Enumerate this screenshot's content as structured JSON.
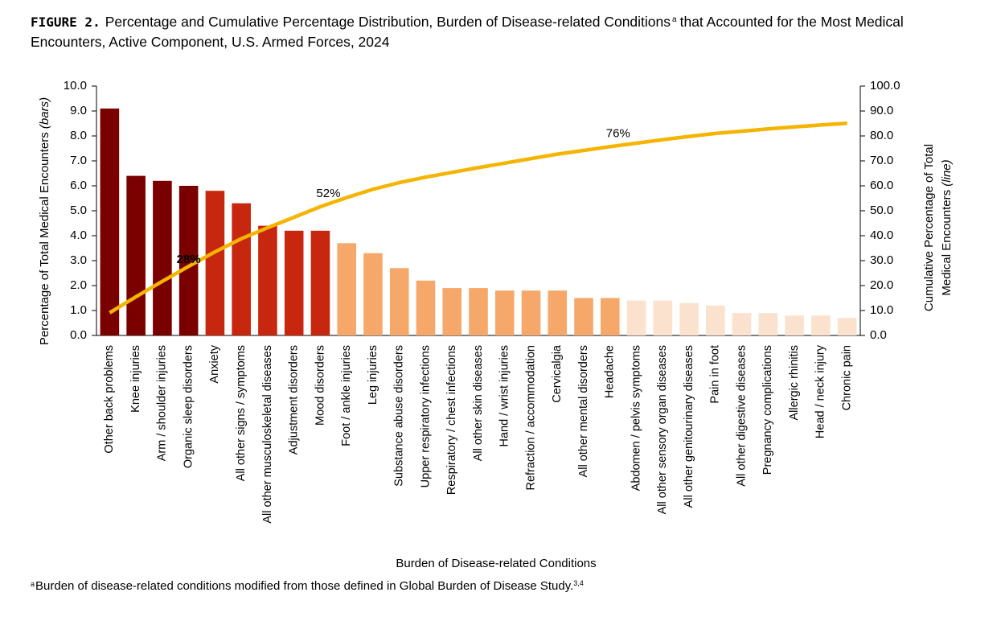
{
  "chart_data": {
    "type": "bar-line",
    "figure_label": "FIGURE 2.",
    "title": "Percentage and Cumulative Percentage Distribution, Burden of Disease-related Conditions",
    "title_superscript": "a",
    "title_rest": "that Accounted for the Most Medical Encounters, Active Component, U.S. Armed Forces, 2024",
    "xlabel": "Burden of Disease-related Conditions",
    "ylabel": "Percentage of Total Medical Encounters",
    "ylabel_note": "(bars)",
    "y2label": "Cumulative Percentage of Total",
    "y2label_line2": "Medical Encounters",
    "y2label_note": "(line)",
    "footnote_marker": "a",
    "footnote": "Burden of disease-related conditions modified from those defined in Global Burden of Disease Study.",
    "footnote_refs": "3,4",
    "categories": [
      "Other back problems",
      "Knee injuries",
      "Arm / shoulder injuries",
      "Organic sleep disorders",
      "Anxiety",
      "All other signs / symptoms",
      "All other musculoskeletal diseases",
      "Adjustment disorders",
      "Mood disorders",
      "Foot / ankle injuries",
      "Leg injuries",
      "Substance abuse disorders",
      "Upper respiratory infections",
      "Respiratory / chest infections",
      "All other skin diseases",
      "Hand / wrist injuries",
      "Refraction / accommodation",
      "Cervicalgia",
      "All other mental disorders",
      "Headache",
      "Abdomen / pelvis symptoms",
      "All other sensory organ diseases",
      "All other genitourinary diseases",
      "Pain in foot",
      "All other digestive diseases",
      "Pregnancy complications",
      "Allergic rhinitis",
      "Head / neck injury",
      "Chronic pain"
    ],
    "series": [
      {
        "type": "bar",
        "values": [
          9.1,
          6.4,
          6.2,
          6.0,
          5.8,
          5.3,
          4.4,
          4.2,
          4.2,
          3.7,
          3.3,
          2.7,
          2.2,
          1.9,
          1.9,
          1.8,
          1.8,
          1.8,
          1.5,
          1.5,
          1.4,
          1.4,
          1.3,
          1.2,
          0.9,
          0.9,
          0.8,
          0.8,
          0.7
        ],
        "colors": [
          "#7a0000",
          "#7a0000",
          "#7a0000",
          "#7a0000",
          "#c7260f",
          "#c7260f",
          "#c7260f",
          "#c7260f",
          "#c7260f",
          "#f5a86a",
          "#f5a86a",
          "#f5a86a",
          "#f5a86a",
          "#f5a86a",
          "#f5a86a",
          "#f5a86a",
          "#f5a86a",
          "#f5a86a",
          "#f5a86a",
          "#f5a86a",
          "#fbe2cf",
          "#fbe2cf",
          "#fbe2cf",
          "#fbe2cf",
          "#fbe2cf",
          "#fbe2cf",
          "#fbe2cf",
          "#fbe2cf",
          "#fbe2cf"
        ]
      },
      {
        "type": "line",
        "axis": "y2",
        "color": "#f5b400",
        "values": [
          9.1,
          15.5,
          21.7,
          27.7,
          33.5,
          38.8,
          43.2,
          47.4,
          51.6,
          55.3,
          58.6,
          61.3,
          63.5,
          65.4,
          67.3,
          69.1,
          70.9,
          72.7,
          74.2,
          75.7,
          77.1,
          78.5,
          79.8,
          81.0,
          81.9,
          82.8,
          83.6,
          84.4,
          85.1
        ],
        "value_labels": [
          null,
          null,
          null,
          "28%",
          null,
          null,
          null,
          null,
          "52%",
          null,
          null,
          null,
          null,
          null,
          null,
          null,
          null,
          null,
          null,
          "76%",
          null,
          null,
          null,
          null,
          null,
          null,
          null,
          null,
          null
        ]
      }
    ],
    "ylim": [
      0,
      10
    ],
    "yticks": [
      {
        "value": 0,
        "label": "0.0"
      },
      {
        "value": 1,
        "label": "1.0"
      },
      {
        "value": 2,
        "label": "2.0"
      },
      {
        "value": 3,
        "label": "3.0"
      },
      {
        "value": 4,
        "label": "4.0"
      },
      {
        "value": 5,
        "label": "5.0"
      },
      {
        "value": 6,
        "label": "6.0"
      },
      {
        "value": 7,
        "label": "7.0"
      },
      {
        "value": 8,
        "label": "8.0"
      },
      {
        "value": 9,
        "label": "9.0"
      },
      {
        "value": 10,
        "label": "10.0"
      }
    ],
    "y2lim": [
      0,
      100
    ],
    "y2ticks": [
      {
        "value": 0,
        "label": "0.0"
      },
      {
        "value": 10,
        "label": "10.0"
      },
      {
        "value": 20,
        "label": "20.0"
      },
      {
        "value": 30,
        "label": "30.0"
      },
      {
        "value": 40,
        "label": "40.0"
      },
      {
        "value": 50,
        "label": "50.0"
      },
      {
        "value": 60,
        "label": "60.0"
      },
      {
        "value": 70,
        "label": "70.0"
      },
      {
        "value": 80,
        "label": "80.0"
      },
      {
        "value": 90,
        "label": "90.0"
      },
      {
        "value": 100,
        "label": "100.0"
      }
    ]
  }
}
